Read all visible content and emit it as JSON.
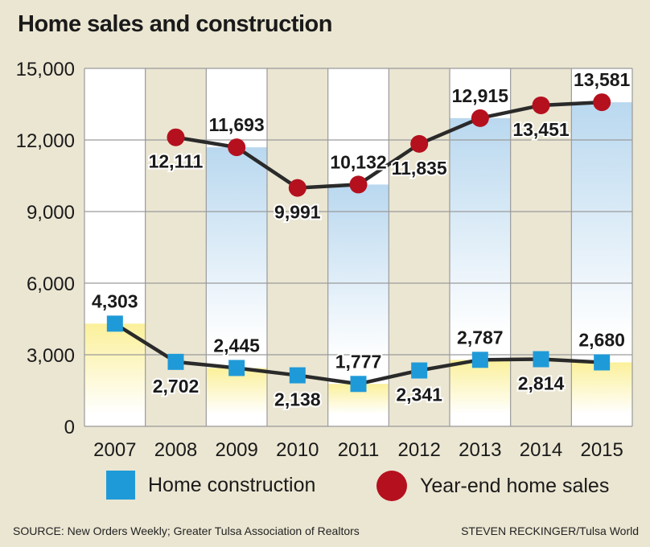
{
  "title": "Home sales and construction",
  "source": "SOURCE: New Orders Weekly; Greater Tulsa Association of Realtors",
  "credit": "STEVEN RECKINGER/Tulsa World",
  "colors": {
    "background": "#ebe6d2",
    "construction": "#1f9ad8",
    "sales": "#b5101e",
    "line": "#2a2a2a"
  },
  "chart_data": {
    "type": "line",
    "title": "Home sales and construction",
    "categories": [
      "2007",
      "2008",
      "2009",
      "2010",
      "2011",
      "2012",
      "2013",
      "2014",
      "2015"
    ],
    "yticks": [
      "0",
      "3,000",
      "6,000",
      "9,000",
      "12,000",
      "15,000"
    ],
    "ylim": [
      0,
      15000
    ],
    "grid": true,
    "legend_position": "bottom",
    "series": [
      {
        "name": "Home construction",
        "marker": "square",
        "values": [
          4303,
          2702,
          2445,
          2138,
          1777,
          2341,
          2787,
          2814,
          2680
        ],
        "labels": [
          "4,303",
          "2,702",
          "2,445",
          "2,138",
          "1,777",
          "2,341",
          "2,787",
          "2,814",
          "2,680"
        ]
      },
      {
        "name": "Year-end home sales",
        "marker": "circle",
        "values": [
          null,
          12111,
          11693,
          9991,
          10132,
          11835,
          12915,
          13451,
          13581
        ],
        "labels": [
          "",
          "12,111",
          "11,693",
          "9,991",
          "10,132",
          "11,835",
          "12,915",
          "13,451",
          "13,581"
        ]
      }
    ]
  },
  "legend": {
    "construction_label": "Home construction",
    "sales_label": "Year-end home sales"
  }
}
